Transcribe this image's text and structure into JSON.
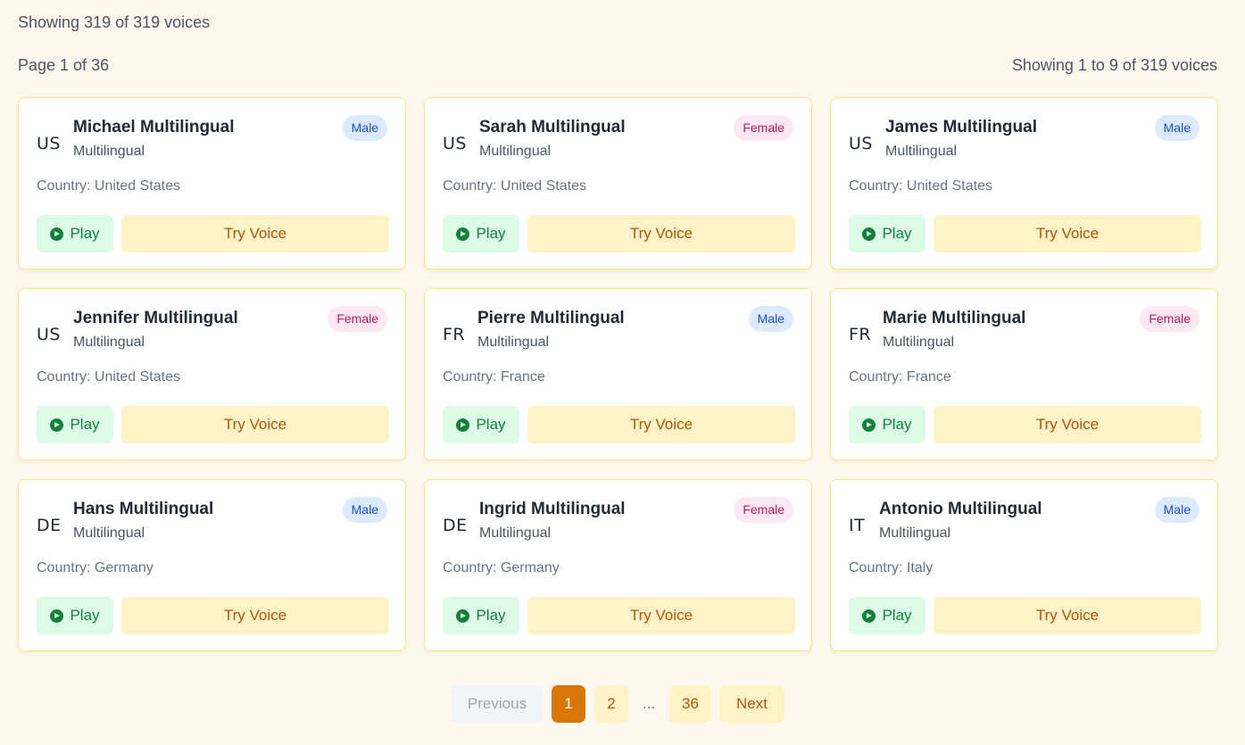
{
  "summary": {
    "total_text": "Showing 319 of 319 voices",
    "page_text": "Page 1 of 36",
    "range_text": "Showing 1 to 9 of 319 voices"
  },
  "voices": [
    {
      "flag": "US",
      "name": "Michael Multilingual",
      "type": "Multilingual",
      "gender": "Male",
      "country": "Country: United States",
      "play": "Play",
      "try": "Try Voice"
    },
    {
      "flag": "US",
      "name": "Sarah Multilingual",
      "type": "Multilingual",
      "gender": "Female",
      "country": "Country: United States",
      "play": "Play",
      "try": "Try Voice"
    },
    {
      "flag": "US",
      "name": "James Multilingual",
      "type": "Multilingual",
      "gender": "Male",
      "country": "Country: United States",
      "play": "Play",
      "try": "Try Voice"
    },
    {
      "flag": "US",
      "name": "Jennifer Multilingual",
      "type": "Multilingual",
      "gender": "Female",
      "country": "Country: United States",
      "play": "Play",
      "try": "Try Voice"
    },
    {
      "flag": "FR",
      "name": "Pierre Multilingual",
      "type": "Multilingual",
      "gender": "Male",
      "country": "Country: France",
      "play": "Play",
      "try": "Try Voice"
    },
    {
      "flag": "FR",
      "name": "Marie Multilingual",
      "type": "Multilingual",
      "gender": "Female",
      "country": "Country: France",
      "play": "Play",
      "try": "Try Voice"
    },
    {
      "flag": "DE",
      "name": "Hans Multilingual",
      "type": "Multilingual",
      "gender": "Male",
      "country": "Country: Germany",
      "play": "Play",
      "try": "Try Voice"
    },
    {
      "flag": "DE",
      "name": "Ingrid Multilingual",
      "type": "Multilingual",
      "gender": "Female",
      "country": "Country: Germany",
      "play": "Play",
      "try": "Try Voice"
    },
    {
      "flag": "IT",
      "name": "Antonio Multilingual",
      "type": "Multilingual",
      "gender": "Male",
      "country": "Country: Italy",
      "play": "Play",
      "try": "Try Voice"
    }
  ],
  "pagination": {
    "previous": "Previous",
    "page_1": "1",
    "page_2": "2",
    "ellipsis": "...",
    "page_last": "36",
    "next": "Next"
  },
  "colors": {
    "accent": "#d97706",
    "male_badge": "#dbeafe",
    "female_badge": "#fce7f3",
    "play_bg": "#dcfce7",
    "try_bg": "#fef3c7"
  },
  "icons": {
    "play": "play-circle-icon"
  }
}
